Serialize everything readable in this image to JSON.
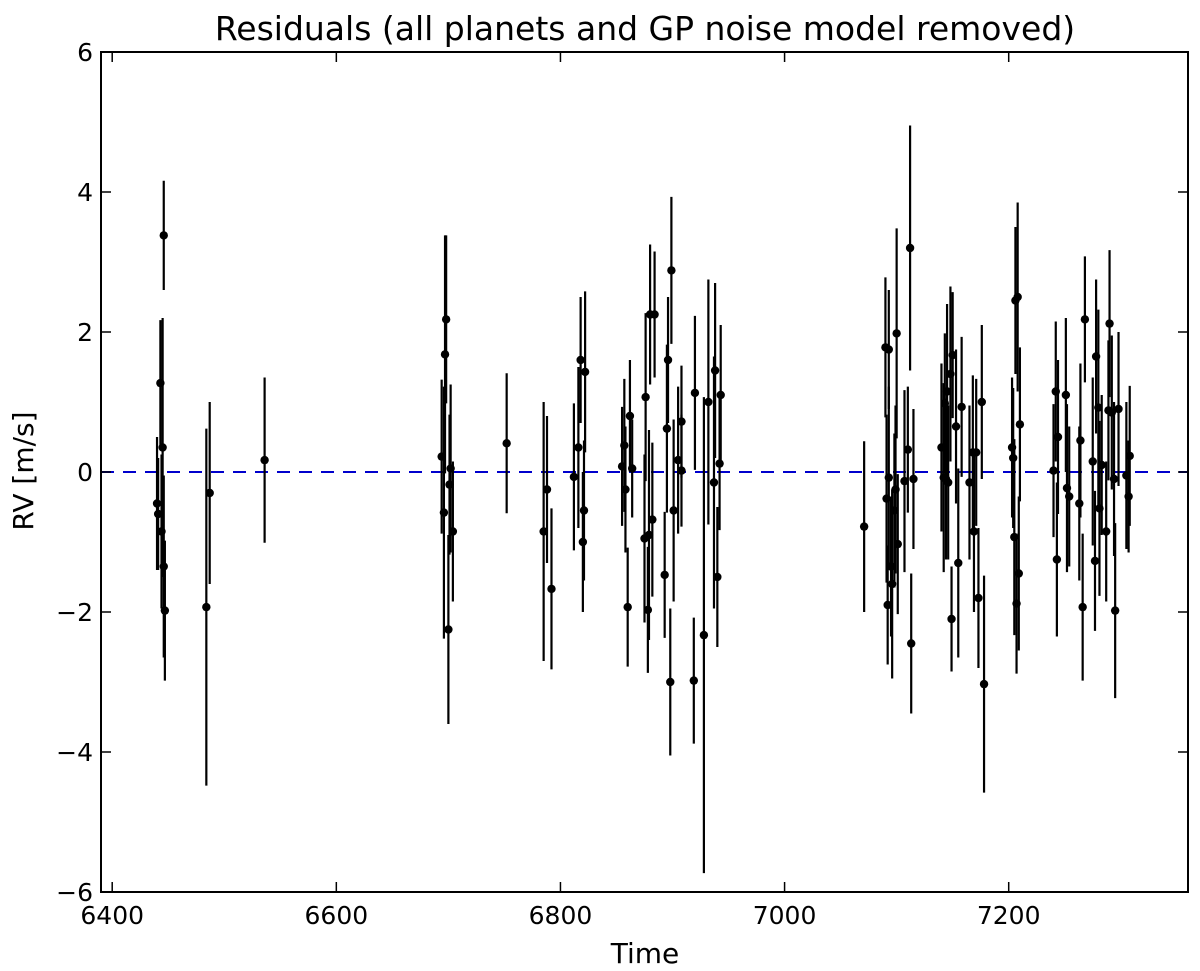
{
  "chart_data": {
    "type": "scatter",
    "title": "Residuals (all planets and GP noise model removed)",
    "xlabel": "Time",
    "ylabel": "RV [m/s]",
    "xlim": [
      6390,
      7360
    ],
    "ylim": [
      -6,
      6
    ],
    "x_ticks": [
      6400,
      6600,
      6800,
      7000,
      7200
    ],
    "x_tick_labels": [
      "6400",
      "6600",
      "6800",
      "7000",
      "7200"
    ],
    "y_ticks": [
      -6,
      -4,
      -2,
      0,
      2,
      4,
      6
    ],
    "y_tick_labels": [
      "−6",
      "−4",
      "−2",
      "0",
      "2",
      "4",
      "6"
    ],
    "grid": false,
    "legend": "none",
    "reference_line": {
      "y": 0,
      "style": "dashed",
      "color": "#0000cc"
    },
    "marker_color": "#000000",
    "points": [
      {
        "x": 6440,
        "y": -0.45,
        "err": 0.95
      },
      {
        "x": 6441,
        "y": -0.6,
        "err": 0.8
      },
      {
        "x": 6443,
        "y": 1.27,
        "err": 0.9
      },
      {
        "x": 6444,
        "y": -0.85,
        "err": 1.1
      },
      {
        "x": 6445,
        "y": 0.35,
        "err": 1.85
      },
      {
        "x": 6446,
        "y": 3.38,
        "err": 0.78
      },
      {
        "x": 6446,
        "y": -1.35,
        "err": 1.3
      },
      {
        "x": 6447,
        "y": -1.98,
        "err": 1.0
      },
      {
        "x": 6484,
        "y": -1.93,
        "err": 2.55
      },
      {
        "x": 6487,
        "y": -0.3,
        "err": 1.3
      },
      {
        "x": 6536,
        "y": 0.17,
        "err": 1.18
      },
      {
        "x": 6694,
        "y": 0.22,
        "err": 1.1
      },
      {
        "x": 6696,
        "y": -0.58,
        "err": 1.8
      },
      {
        "x": 6697,
        "y": 1.68,
        "err": 1.7
      },
      {
        "x": 6698,
        "y": 2.18,
        "err": 1.2
      },
      {
        "x": 6700,
        "y": -2.25,
        "err": 1.35
      },
      {
        "x": 6701,
        "y": -0.18,
        "err": 1.0
      },
      {
        "x": 6702,
        "y": 0.05,
        "err": 1.2
      },
      {
        "x": 6704,
        "y": -0.85,
        "err": 1.0
      },
      {
        "x": 6752,
        "y": 0.41,
        "err": 1.0
      },
      {
        "x": 6785,
        "y": -0.85,
        "err": 1.85
      },
      {
        "x": 6788,
        "y": -0.25,
        "err": 1.05
      },
      {
        "x": 6792,
        "y": -1.67,
        "err": 1.15
      },
      {
        "x": 6812,
        "y": -0.07,
        "err": 1.05
      },
      {
        "x": 6816,
        "y": 0.35,
        "err": 1.15
      },
      {
        "x": 6818,
        "y": 1.6,
        "err": 0.9
      },
      {
        "x": 6820,
        "y": -1.0,
        "err": 1.0
      },
      {
        "x": 6821,
        "y": -0.55,
        "err": 1.0
      },
      {
        "x": 6822,
        "y": 1.43,
        "err": 1.15
      },
      {
        "x": 6855,
        "y": 0.08,
        "err": 0.85
      },
      {
        "x": 6857,
        "y": 0.38,
        "err": 0.95
      },
      {
        "x": 6858,
        "y": -0.25,
        "err": 0.9
      },
      {
        "x": 6860,
        "y": -1.93,
        "err": 0.85
      },
      {
        "x": 6862,
        "y": 0.8,
        "err": 0.8
      },
      {
        "x": 6864,
        "y": 0.05,
        "err": 0.7
      },
      {
        "x": 6875,
        "y": -0.95,
        "err": 1.2
      },
      {
        "x": 6876,
        "y": 1.07,
        "err": 1.2
      },
      {
        "x": 6878,
        "y": -1.97,
        "err": 0.9
      },
      {
        "x": 6879,
        "y": -0.9,
        "err": 1.5
      },
      {
        "x": 6880,
        "y": 2.25,
        "err": 1.0
      },
      {
        "x": 6882,
        "y": -0.68,
        "err": 1.1
      },
      {
        "x": 6884,
        "y": 2.25,
        "err": 0.9
      },
      {
        "x": 6893,
        "y": -1.47,
        "err": 0.9
      },
      {
        "x": 6895,
        "y": 0.62,
        "err": 1.2
      },
      {
        "x": 6896,
        "y": 1.6,
        "err": 0.9
      },
      {
        "x": 6898,
        "y": -3.0,
        "err": 1.05
      },
      {
        "x": 6899,
        "y": 2.88,
        "err": 1.05
      },
      {
        "x": 6901,
        "y": -0.55,
        "err": 1.3
      },
      {
        "x": 6905,
        "y": 0.17,
        "err": 1.05
      },
      {
        "x": 6908,
        "y": 0.02,
        "err": 0.8
      },
      {
        "x": 6908,
        "y": 0.72,
        "err": 0.8
      },
      {
        "x": 6919,
        "y": -2.98,
        "err": 0.9
      },
      {
        "x": 6920,
        "y": 1.13,
        "err": 1.1
      },
      {
        "x": 6928,
        "y": -2.33,
        "err": 3.4
      },
      {
        "x": 6932,
        "y": 1.0,
        "err": 1.75
      },
      {
        "x": 6937,
        "y": -0.15,
        "err": 1.8
      },
      {
        "x": 6938,
        "y": 1.45,
        "err": 1.25
      },
      {
        "x": 6940,
        "y": -1.5,
        "err": 1.0
      },
      {
        "x": 6942,
        "y": 0.12,
        "err": 0.95
      },
      {
        "x": 6943,
        "y": 1.1,
        "err": 1.0
      },
      {
        "x": 7071,
        "y": -0.78,
        "err": 1.22
      },
      {
        "x": 7090,
        "y": 1.78,
        "err": 1.0
      },
      {
        "x": 7091,
        "y": -0.38,
        "err": 1.2
      },
      {
        "x": 7092,
        "y": -1.9,
        "err": 0.85
      },
      {
        "x": 7093,
        "y": -0.08,
        "err": 1.3
      },
      {
        "x": 7093,
        "y": 1.75,
        "err": 0.85
      },
      {
        "x": 7095,
        "y": -1.35,
        "err": 1.0
      },
      {
        "x": 7096,
        "y": -1.6,
        "err": 1.35
      },
      {
        "x": 7098,
        "y": -0.55,
        "err": 1.1
      },
      {
        "x": 7099,
        "y": -0.25,
        "err": 1.2
      },
      {
        "x": 7100,
        "y": 1.98,
        "err": 1.5
      },
      {
        "x": 7101,
        "y": -1.03,
        "err": 1.0
      },
      {
        "x": 7107,
        "y": -0.13,
        "err": 1.3
      },
      {
        "x": 7110,
        "y": 0.32,
        "err": 0.9
      },
      {
        "x": 7112,
        "y": 3.2,
        "err": 1.75
      },
      {
        "x": 7113,
        "y": -2.45,
        "err": 1.0
      },
      {
        "x": 7115,
        "y": -0.1,
        "err": 1.0
      },
      {
        "x": 7140,
        "y": 0.35,
        "err": 1.2
      },
      {
        "x": 7142,
        "y": -0.08,
        "err": 1.35
      },
      {
        "x": 7143,
        "y": 0.98,
        "err": 1.0
      },
      {
        "x": 7144,
        "y": -0.1,
        "err": 1.15
      },
      {
        "x": 7145,
        "y": 1.15,
        "err": 1.25
      },
      {
        "x": 7146,
        "y": -0.15,
        "err": 1.1
      },
      {
        "x": 7148,
        "y": 1.4,
        "err": 1.25
      },
      {
        "x": 7149,
        "y": -2.1,
        "err": 0.75
      },
      {
        "x": 7150,
        "y": 1.67,
        "err": 0.9
      },
      {
        "x": 7153,
        "y": 0.65,
        "err": 1.1
      },
      {
        "x": 7155,
        "y": -1.3,
        "err": 1.35
      },
      {
        "x": 7158,
        "y": 0.93,
        "err": 1.0
      },
      {
        "x": 7165,
        "y": -0.15,
        "err": 1.1
      },
      {
        "x": 7168,
        "y": 0.28,
        "err": 1.1
      },
      {
        "x": 7169,
        "y": -0.85,
        "err": 1.15
      },
      {
        "x": 7171,
        "y": 0.28,
        "err": 1.05
      },
      {
        "x": 7173,
        "y": -1.8,
        "err": 1.0
      },
      {
        "x": 7176,
        "y": 1.0,
        "err": 1.1
      },
      {
        "x": 7178,
        "y": -3.03,
        "err": 1.55
      },
      {
        "x": 7203,
        "y": 0.35,
        "err": 1.0
      },
      {
        "x": 7204,
        "y": 0.2,
        "err": 1.0
      },
      {
        "x": 7205,
        "y": -0.93,
        "err": 1.4
      },
      {
        "x": 7206,
        "y": 2.45,
        "err": 1.05
      },
      {
        "x": 7207,
        "y": -1.88,
        "err": 1.0
      },
      {
        "x": 7208,
        "y": 2.5,
        "err": 1.35
      },
      {
        "x": 7209,
        "y": -1.45,
        "err": 1.1
      },
      {
        "x": 7210,
        "y": 0.68,
        "err": 1.1
      },
      {
        "x": 7240,
        "y": 0.02,
        "err": 0.95
      },
      {
        "x": 7242,
        "y": 1.15,
        "err": 1.0
      },
      {
        "x": 7243,
        "y": -1.25,
        "err": 1.1
      },
      {
        "x": 7244,
        "y": 0.5,
        "err": 1.1
      },
      {
        "x": 7251,
        "y": 1.1,
        "err": 1.1
      },
      {
        "x": 7252,
        "y": -0.23,
        "err": 1.2
      },
      {
        "x": 7254,
        "y": -0.35,
        "err": 1.0
      },
      {
        "x": 7263,
        "y": -0.45,
        "err": 1.1
      },
      {
        "x": 7264,
        "y": 0.45,
        "err": 1.1
      },
      {
        "x": 7266,
        "y": -1.93,
        "err": 1.05
      },
      {
        "x": 7268,
        "y": 2.18,
        "err": 0.9
      },
      {
        "x": 7275,
        "y": 0.15,
        "err": 1.2
      },
      {
        "x": 7277,
        "y": -1.27,
        "err": 1.0
      },
      {
        "x": 7278,
        "y": 1.65,
        "err": 1.1
      },
      {
        "x": 7280,
        "y": 0.92,
        "err": 1.4
      },
      {
        "x": 7281,
        "y": -0.52,
        "err": 1.25
      },
      {
        "x": 7283,
        "y": 0.1,
        "err": 1.0
      },
      {
        "x": 7287,
        "y": -0.85,
        "err": 1.0
      },
      {
        "x": 7289,
        "y": 0.88,
        "err": 1.0
      },
      {
        "x": 7290,
        "y": 2.12,
        "err": 1.05
      },
      {
        "x": 7292,
        "y": 0.85,
        "err": 1.1
      },
      {
        "x": 7294,
        "y": -0.1,
        "err": 1.1
      },
      {
        "x": 7295,
        "y": -1.98,
        "err": 1.25
      },
      {
        "x": 7298,
        "y": 0.9,
        "err": 1.1
      },
      {
        "x": 7305,
        "y": -0.05,
        "err": 1.05
      },
      {
        "x": 7307,
        "y": -0.35,
        "err": 0.8
      },
      {
        "x": 7308,
        "y": 0.23,
        "err": 1.0
      }
    ]
  }
}
